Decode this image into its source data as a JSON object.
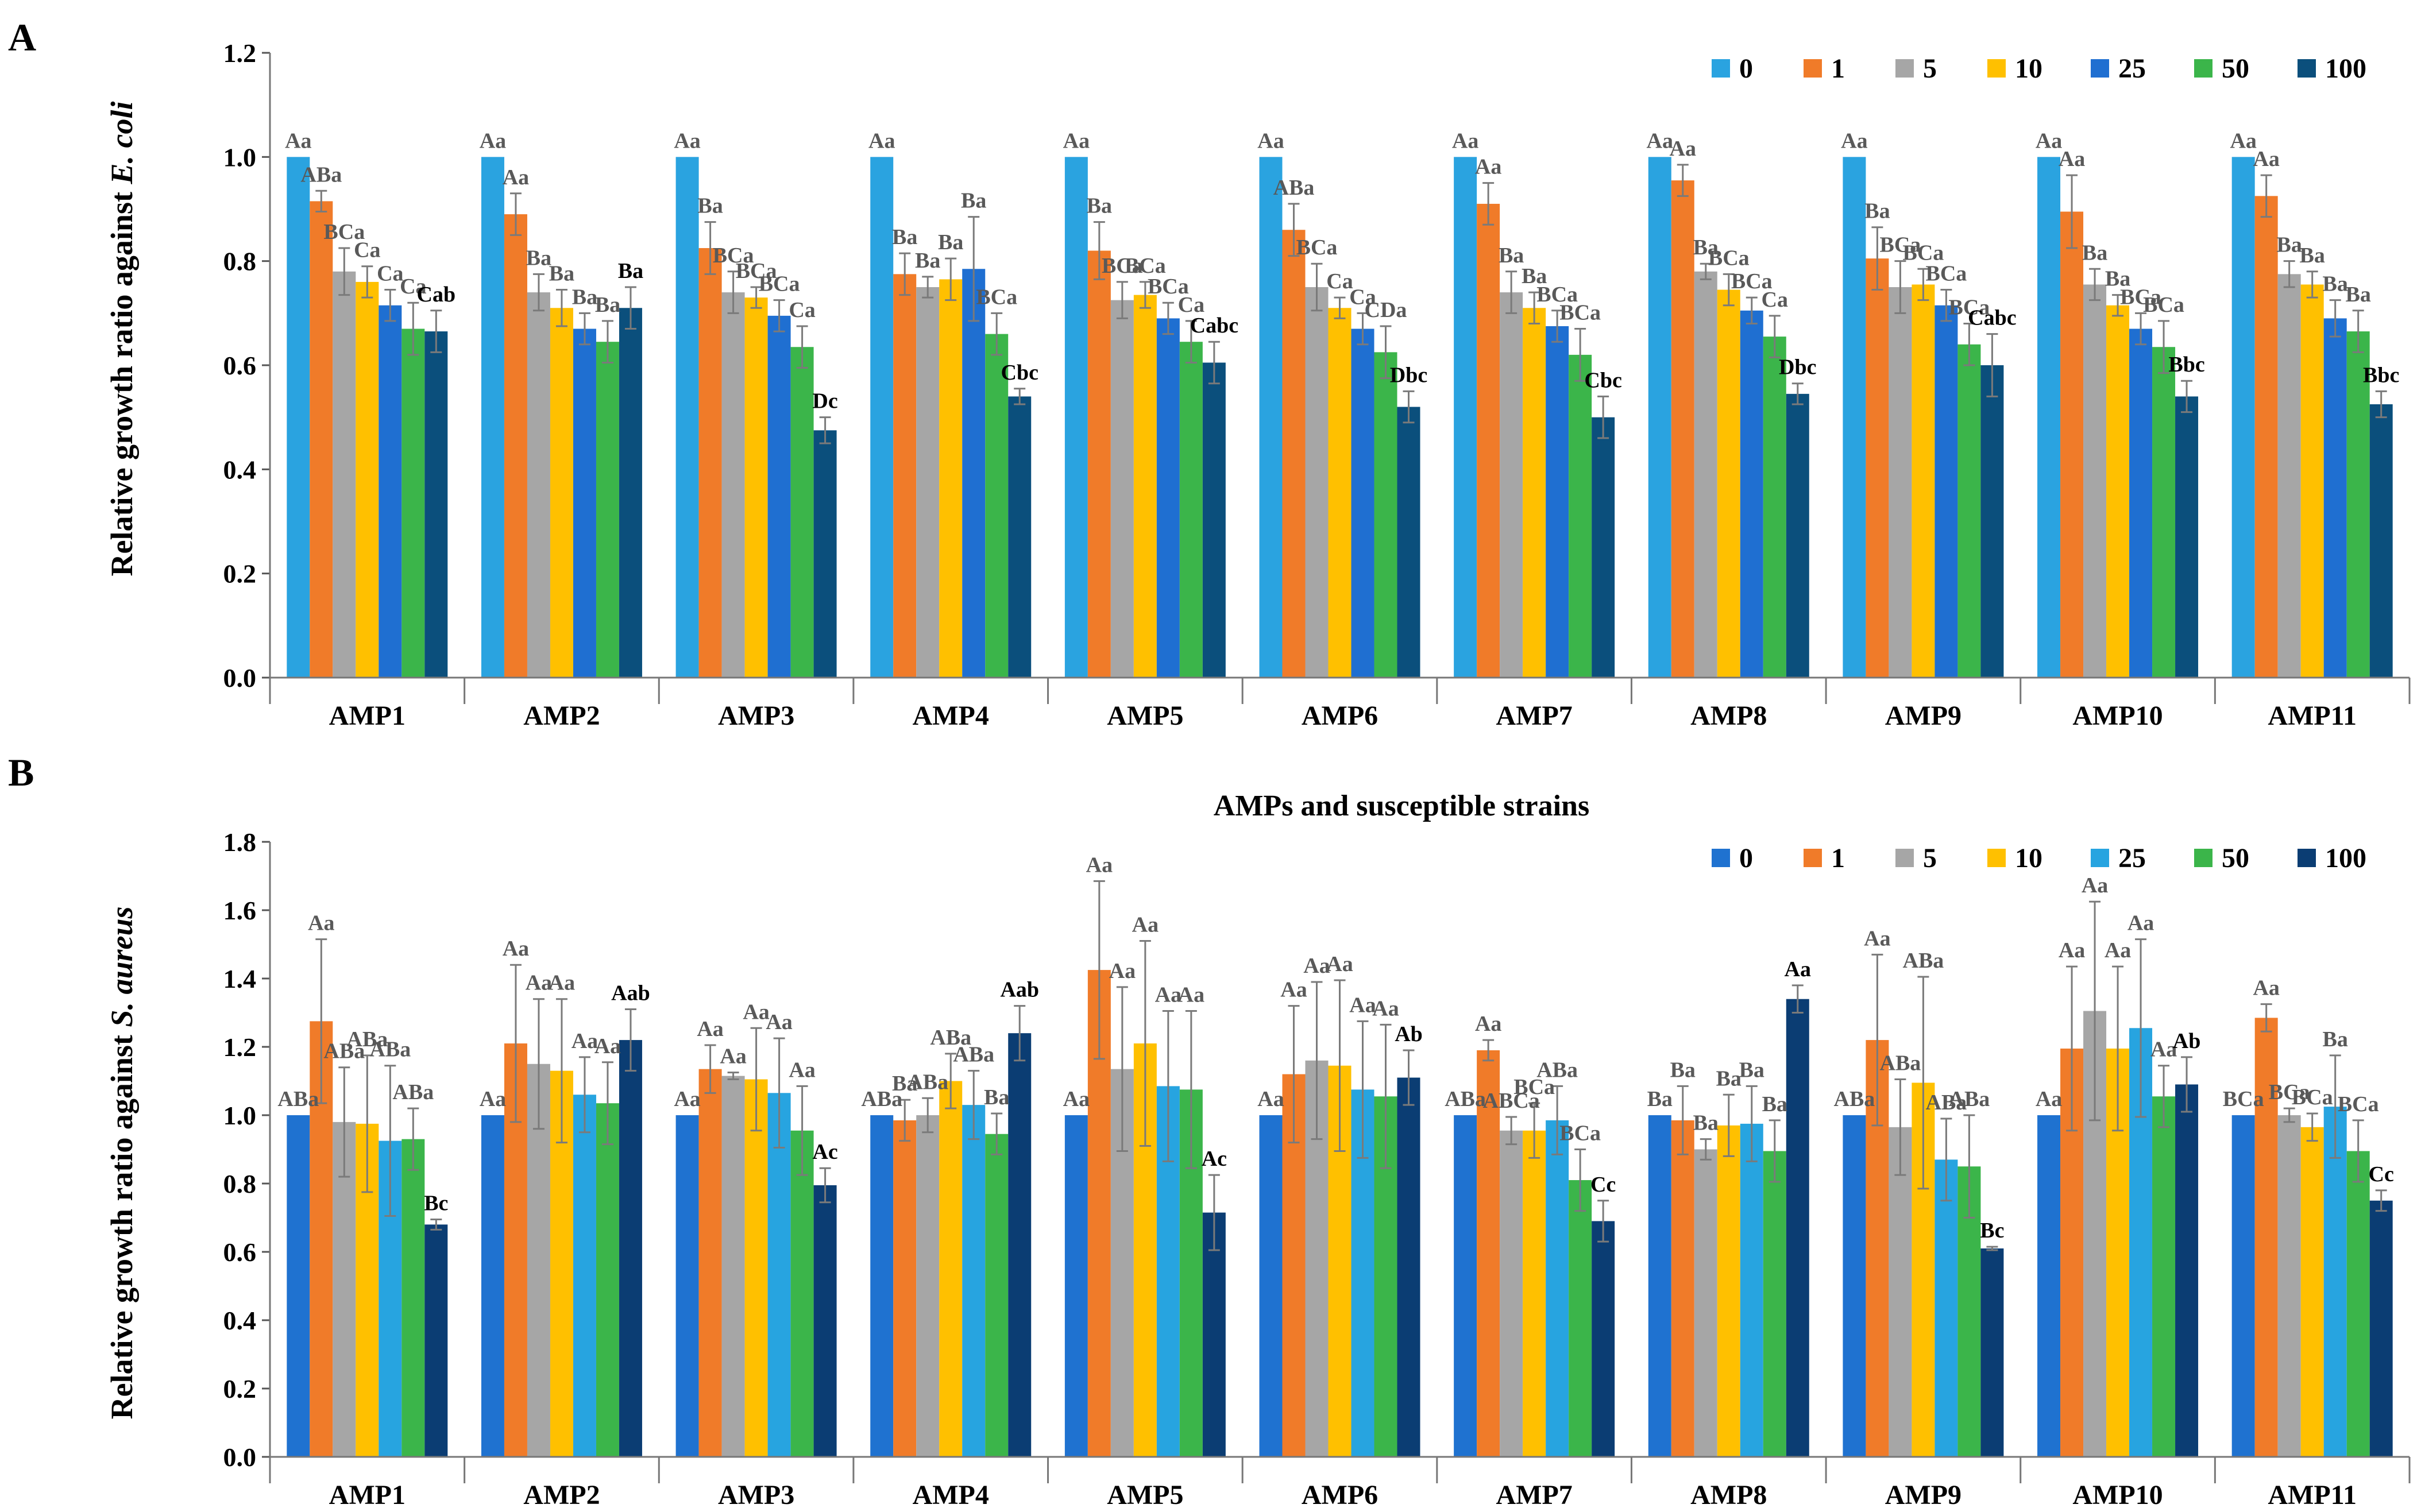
{
  "panels": [
    {
      "panel_label": "A",
      "legend_title": "",
      "colors": [
        "#2aa3e0",
        "#f07b29",
        "#a6a6a6",
        "#ffc000",
        "#1f6fd1",
        "#3bb54a",
        "#0b4f7c"
      ],
      "chart_data": {
        "type": "bar",
        "title": "",
        "xlabel": "",
        "ylabel_prefix": "Relative growth ratio against ",
        "ylabel_italic": "E. coli",
        "ylim": [
          0,
          1.2
        ],
        "yticks": [
          "0.0",
          "0.2",
          "0.4",
          "0.6",
          "0.8",
          "1.0",
          "1.2"
        ],
        "legend_position": "top-right",
        "categories": [
          "AMP1",
          "AMP2",
          "AMP3",
          "AMP4",
          "AMP5",
          "AMP6",
          "AMP7",
          "AMP8",
          "AMP9",
          "AMP10",
          "AMP11"
        ],
        "series": [
          {
            "name": "0",
            "values": [
              1.0,
              1.0,
              1.0,
              1.0,
              1.0,
              1.0,
              1.0,
              1.0,
              1.0,
              1.0,
              1.0
            ],
            "errors": [
              0,
              0,
              0,
              0,
              0,
              0,
              0,
              0,
              0,
              0,
              0
            ],
            "labels": [
              "Aa",
              "Aa",
              "Aa",
              "Aa",
              "Aa",
              "Aa",
              "Aa",
              "Aa",
              "Aa",
              "Aa",
              "Aa"
            ]
          },
          {
            "name": "1",
            "values": [
              0.915,
              0.89,
              0.825,
              0.775,
              0.82,
              0.86,
              0.91,
              0.955,
              0.805,
              0.895,
              0.925
            ],
            "errors": [
              0.02,
              0.04,
              0.05,
              0.04,
              0.055,
              0.05,
              0.04,
              0.03,
              0.06,
              0.07,
              0.04
            ],
            "labels": [
              "ABa",
              "Aa",
              "Ba",
              "Ba",
              "Ba",
              "ABa",
              "Aa",
              "Aa",
              "Ba",
              "Aa",
              "Aa"
            ]
          },
          {
            "name": "5",
            "values": [
              0.78,
              0.74,
              0.74,
              0.75,
              0.725,
              0.75,
              0.74,
              0.78,
              0.75,
              0.755,
              0.775
            ],
            "errors": [
              0.045,
              0.035,
              0.04,
              0.02,
              0.035,
              0.045,
              0.04,
              0.015,
              0.05,
              0.03,
              0.025
            ],
            "labels": [
              "BCa",
              "Ba",
              "BCa",
              "Ba",
              "BCa",
              "BCa",
              "Ba",
              "Ba",
              "BCa",
              "Ba",
              "Ba"
            ]
          },
          {
            "name": "10",
            "values": [
              0.76,
              0.71,
              0.73,
              0.765,
              0.735,
              0.71,
              0.71,
              0.745,
              0.755,
              0.715,
              0.755
            ],
            "errors": [
              0.03,
              0.035,
              0.02,
              0.04,
              0.025,
              0.02,
              0.03,
              0.03,
              0.03,
              0.02,
              0.025
            ],
            "labels": [
              "Ca",
              "Ba",
              "BCa",
              "Ba",
              "BCa",
              "Ca",
              "Ba",
              "BCa",
              "BCa",
              "Ba",
              "Ba"
            ]
          },
          {
            "name": "25",
            "values": [
              0.715,
              0.67,
              0.695,
              0.785,
              0.69,
              0.67,
              0.675,
              0.705,
              0.715,
              0.67,
              0.69
            ],
            "errors": [
              0.03,
              0.03,
              0.03,
              0.1,
              0.03,
              0.03,
              0.03,
              0.025,
              0.03,
              0.03,
              0.035
            ],
            "labels": [
              "Ca",
              "Ba",
              "BCa",
              "Ba",
              "BCa",
              "Ca",
              "BCa",
              "BCa",
              "BCa",
              "BCa",
              "Ba"
            ]
          },
          {
            "name": "50",
            "values": [
              0.67,
              0.645,
              0.635,
              0.66,
              0.645,
              0.625,
              0.62,
              0.655,
              0.64,
              0.635,
              0.665
            ],
            "errors": [
              0.05,
              0.04,
              0.04,
              0.04,
              0.04,
              0.05,
              0.05,
              0.04,
              0.04,
              0.05,
              0.04
            ],
            "labels": [
              "Ca",
              "Ba",
              "Ca",
              "BCa",
              "Ca",
              "CDa",
              "BCa",
              "Ca",
              "BCa",
              "BCa",
              "Ba"
            ]
          },
          {
            "name": "100",
            "values": [
              0.665,
              0.71,
              0.475,
              0.54,
              0.605,
              0.52,
              0.5,
              0.545,
              0.6,
              0.54,
              0.525
            ],
            "errors": [
              0.04,
              0.04,
              0.025,
              0.015,
              0.04,
              0.03,
              0.04,
              0.02,
              0.06,
              0.03,
              0.025
            ],
            "labels": [
              "Cab",
              "Ba",
              "Dc",
              "Cbc",
              "Cabc",
              "Dbc",
              "Cbc",
              "Dbc",
              "Cabc",
              "Bbc",
              "Bbc"
            ]
          }
        ]
      }
    },
    {
      "panel_label": "B",
      "legend_title": "AMPs and susceptible strains",
      "colors": [
        "#1f72d0",
        "#f07b29",
        "#a6a6a6",
        "#ffc000",
        "#27a4e0",
        "#3bb54a",
        "#0b3d73"
      ],
      "chart_data": {
        "type": "bar",
        "title": "",
        "xlabel": "",
        "ylabel_prefix": "Relative growth  ratio against ",
        "ylabel_italic": "S. aureus",
        "ylim": [
          0,
          1.8
        ],
        "yticks": [
          "0.0",
          "0.2",
          "0.4",
          "0.6",
          "0.8",
          "1.0",
          "1.2",
          "1.4",
          "1.6",
          "1.8"
        ],
        "legend_position": "top-right",
        "categories": [
          "AMP1",
          "AMP2",
          "AMP3",
          "AMP4",
          "AMP5",
          "AMP6",
          "AMP7",
          "AMP8",
          "AMP9",
          "AMP10",
          "AMP11"
        ],
        "series": [
          {
            "name": "0",
            "values": [
              1.0,
              1.0,
              1.0,
              1.0,
              1.0,
              1.0,
              1.0,
              1.0,
              1.0,
              1.0,
              1.0
            ],
            "errors": [
              0,
              0,
              0,
              0,
              0,
              0,
              0,
              0,
              0,
              0,
              0
            ],
            "labels": [
              "ABa",
              "Aa",
              "Aa",
              "ABa",
              "Aa",
              "Aa",
              "ABa",
              "Ba",
              "ABa",
              "Aa",
              "BCa"
            ]
          },
          {
            "name": "1",
            "values": [
              1.275,
              1.21,
              1.135,
              0.985,
              1.425,
              1.12,
              1.19,
              0.985,
              1.22,
              1.195,
              1.285
            ],
            "errors": [
              0.24,
              0.23,
              0.07,
              0.06,
              0.26,
              0.2,
              0.03,
              0.1,
              0.25,
              0.24,
              0.04
            ],
            "labels": [
              "Aa",
              "Aa",
              "Aa",
              "Ba",
              "Aa",
              "Aa",
              "Aa",
              "Ba",
              "Aa",
              "Aa",
              "Aa"
            ]
          },
          {
            "name": "5",
            "values": [
              0.98,
              1.15,
              1.115,
              1.0,
              1.135,
              1.16,
              0.955,
              0.9,
              0.965,
              1.305,
              1.0
            ],
            "errors": [
              0.16,
              0.19,
              0.01,
              0.05,
              0.24,
              0.23,
              0.04,
              0.03,
              0.14,
              0.32,
              0.02
            ],
            "labels": [
              "ABa",
              "Aa",
              "Aa",
              "ABa",
              "Aa",
              "Aa",
              "ABCa",
              "Ba",
              "ABa",
              "Aa",
              "BCa"
            ]
          },
          {
            "name": "10",
            "values": [
              0.975,
              1.13,
              1.105,
              1.1,
              1.21,
              1.145,
              0.955,
              0.97,
              1.095,
              1.195,
              0.965
            ],
            "errors": [
              0.2,
              0.21,
              0.15,
              0.08,
              0.3,
              0.25,
              0.08,
              0.09,
              0.31,
              0.24,
              0.04
            ],
            "labels": [
              "ABa",
              "Aa",
              "Aa",
              "ABa",
              "Aa",
              "Aa",
              "BCa",
              "Ba",
              "ABa",
              "Aa",
              "BCa"
            ]
          },
          {
            "name": "25",
            "values": [
              0.925,
              1.06,
              1.065,
              1.03,
              1.085,
              1.075,
              0.985,
              0.975,
              0.87,
              1.255,
              1.025
            ],
            "errors": [
              0.22,
              0.11,
              0.16,
              0.1,
              0.22,
              0.2,
              0.1,
              0.11,
              0.12,
              0.26,
              0.15
            ],
            "labels": [
              "ABa",
              "Aa",
              "Aa",
              "ABa",
              "Aa",
              "Aa",
              "ABa",
              "Ba",
              "ABa",
              "Aa",
              "Ba"
            ]
          },
          {
            "name": "50",
            "values": [
              0.93,
              1.035,
              0.955,
              0.945,
              1.075,
              1.055,
              0.81,
              0.895,
              0.85,
              1.055,
              0.895
            ],
            "errors": [
              0.09,
              0.12,
              0.13,
              0.06,
              0.23,
              0.21,
              0.09,
              0.09,
              0.15,
              0.09,
              0.09
            ],
            "labels": [
              "ABa",
              "Aa",
              "Aa",
              "Ba",
              "Aa",
              "Aa",
              "BCa",
              "Ba",
              "ABa",
              "Aa",
              "BCa"
            ]
          },
          {
            "name": "100",
            "values": [
              0.68,
              1.22,
              0.795,
              1.24,
              0.715,
              1.11,
              0.69,
              1.34,
              0.61,
              1.09,
              0.75
            ],
            "errors": [
              0.015,
              0.09,
              0.05,
              0.08,
              0.11,
              0.08,
              0.06,
              0.04,
              0.005,
              0.08,
              0.03
            ],
            "labels": [
              "Bc",
              "Aab",
              "Ac",
              "Aab",
              "Ac",
              "Ab",
              "Cc",
              "Aa",
              "Bc",
              "Ab",
              "Cc"
            ]
          }
        ]
      }
    }
  ]
}
